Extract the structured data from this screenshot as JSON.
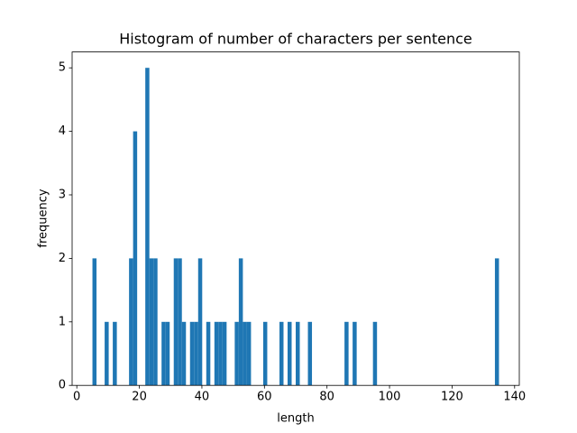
{
  "chart_data": {
    "type": "histogram",
    "title": "Histogram of number of characters per sentence",
    "x_label": "length",
    "y_label": "frequency",
    "color": "#1f77b4",
    "bins": [
      5,
      6.3,
      7.6,
      8.9,
      10.2,
      11.5,
      12.8,
      14.1,
      15.4,
      16.7,
      18,
      19.3,
      20.6,
      21.9,
      23.2,
      24.5,
      25.8,
      27.1,
      28.4,
      29.7,
      31,
      32.3,
      33.6,
      34.9,
      36.2,
      37.5,
      38.8,
      40.1,
      41.4,
      42.7,
      44,
      45.3,
      46.6,
      47.9,
      49.2,
      50.5,
      51.8,
      53.1,
      54.4,
      55.7,
      57,
      58.3,
      59.6,
      60.9,
      62.2,
      63.5,
      64.8,
      66.1,
      67.4,
      68.7,
      70,
      71.3,
      72.6,
      73.9,
      75.2,
      76.5,
      77.8,
      79.1,
      80.4,
      81.7,
      83,
      84.3,
      85.6,
      86.9,
      88.2,
      89.5,
      90.8,
      92.1,
      93.4,
      94.7,
      96,
      97.3,
      98.6,
      99.9,
      101.2,
      102.5,
      103.8,
      105.1,
      106.4,
      107.7,
      109,
      110.3,
      111.6,
      112.9,
      114.2,
      115.5,
      116.8,
      118.1,
      119.4,
      120.7,
      122,
      123.3,
      124.6,
      125.9,
      127.2,
      128.5,
      129.8,
      131.1,
      132.4,
      133.7,
      135
    ],
    "values": [
      2,
      0,
      0,
      1,
      0,
      1,
      0,
      0,
      0,
      2,
      4,
      0,
      0,
      5,
      2,
      2,
      0,
      1,
      1,
      0,
      2,
      2,
      1,
      0,
      1,
      1,
      2,
      0,
      1,
      0,
      1,
      1,
      1,
      0,
      0,
      1,
      2,
      1,
      1,
      0,
      0,
      0,
      1,
      0,
      0,
      0,
      1,
      0,
      1,
      0,
      1,
      0,
      0,
      1,
      0,
      0,
      0,
      0,
      0,
      0,
      0,
      0,
      1,
      0,
      1,
      0,
      0,
      0,
      0,
      1,
      0,
      0,
      0,
      0,
      0,
      0,
      0,
      0,
      0,
      0,
      0,
      0,
      0,
      0,
      0,
      0,
      0,
      0,
      0,
      0,
      0,
      0,
      0,
      0,
      0,
      0,
      0,
      0,
      0,
      2
    ],
    "xlim": [
      -1.5,
      141.5
    ],
    "xticks": [
      0,
      20,
      40,
      60,
      80,
      100,
      120,
      140
    ],
    "ylim": [
      0,
      5.25
    ],
    "yticks": [
      0,
      1,
      2,
      3,
      4,
      5
    ]
  }
}
